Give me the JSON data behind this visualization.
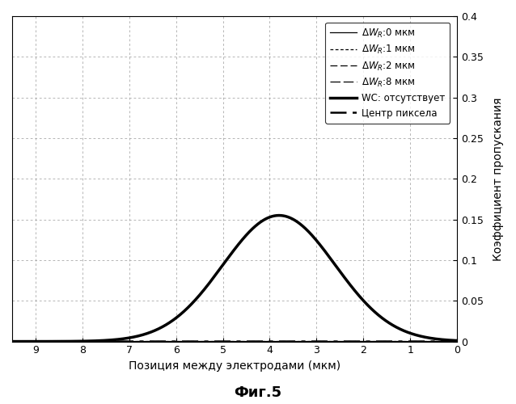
{
  "xlabel": "Позиция между электродами (мкм)",
  "ylabel": "Коэффициент пропускания",
  "fig_caption": "Фиг.5",
  "xlim_left": 9.5,
  "xlim_right": 0,
  "ylim": [
    0,
    0.4
  ],
  "xticks": [
    9,
    8,
    7,
    6,
    5,
    4,
    3,
    2,
    1,
    0
  ],
  "yticks": [
    0,
    0.05,
    0.1,
    0.15,
    0.2,
    0.25,
    0.3,
    0.35,
    0.4
  ],
  "legend_labels_display": [
    "ΔW_R:0 мкм",
    "ΔW_R:1 мкм",
    "ΔW_R:2 мкм",
    "ΔW_R:8 мкм",
    "WC: отсутствует",
    "Центр пиксела"
  ],
  "background_color": "#ffffff"
}
